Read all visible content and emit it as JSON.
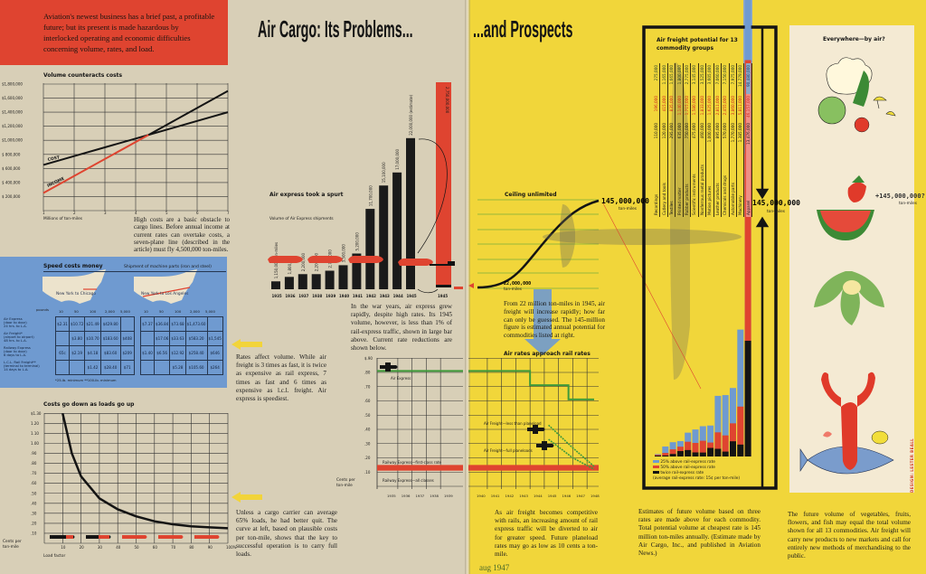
{
  "header": {
    "title_left": "Air Cargo: Its Problems...",
    "title_right": "...and Prospects"
  },
  "intro": "Aviation's newest business has a brief past, a profitable future; but its present is made hazardous by interlocked operating and economic difficulties concerning volume, rates, and load.",
  "texts": {
    "volume": "High costs are a basic obstacle to cargo lines. Before annual income at current rates can overtake costs, a seven-plane line (described in the article) must fly 4,500,000 ton-miles.",
    "rates_volume": "Rates affect volume. While air freight is 3 times as fast, it is twice as expensive as rail express, 7 times as fast and 6 times as expensive as l.c.l. freight. Air express is speediest.",
    "loads": "Unless a cargo carrier can average 65% loads, he had better quit. The curve at left, based on plausible costs per ton-mile, shows that the key to successful operation is to carry full loads.",
    "war_years": "In the war years, air express grew rapidly, despite high rates. Its 1945 volume, however, is less than 1% of rail-express traffic, shown in large bar above. Current rate reductions are shown below.",
    "from_22": "From 22 million ton-miles in 1945, air freight will increase rapidly; how far can only be guessed. The 145-million figure is estimated annual potential for commodities listed at right.",
    "competitive": "As air freight becomes competitive with rails, an increasing amount of rail express traffic will be diverted to air for greater speed. Future planeload rates may go as low as 10 cents a ton-mile.",
    "estimates": "Estimates of future volume based on three rates are made above for each commodity. Total potential volume at cheapest rate is 145 million ton-miles annually. (Estimate made by Air Cargo, Inc., and published in Aviation News.)",
    "future": "The future volume of vegetables, fruits, flowers, and fish may equal the total volume shown for all 13 commodities. Air freight will carry new products to new markets and call for entirely new methods of merchandising to the public."
  },
  "speed": {
    "title": "Speed costs money",
    "subtitle": "Shipment of machine parts (iron and steel)",
    "routes": [
      "New York to Chicago",
      "New York to Los Angeles"
    ],
    "weights_label": "pounds",
    "weights": [
      "10",
      "50",
      "100",
      "2,000",
      "5,000"
    ],
    "modes": [
      [
        "Air Express",
        "(door to door)",
        "24 hrs. to L.A."
      ],
      [
        "Air Freight*",
        "(airport to airport)",
        "48 hrs. to L.A."
      ],
      [
        "Railway Express",
        "(door to door)",
        "6 days to L.A."
      ],
      [
        "L.C.L. Rail Freight**",
        "(terminal to terminal)",
        "14 days to L.A."
      ]
    ],
    "chicago": [
      [
        "$2.31",
        "$10.72",
        "$21.49",
        "$429.80",
        ""
      ],
      [
        "",
        "$3.80",
        "$10.70",
        "$183.60",
        "$408"
      ],
      [
        "65c",
        "$2.19",
        "$4.18",
        "$83.60",
        "$209"
      ],
      [
        "",
        "",
        "$1.42",
        "$28.40",
        "$71"
      ]
    ],
    "los_angeles": [
      [
        "$7.37",
        "$36.84",
        "$73.68",
        "$1,473.60",
        ""
      ],
      [
        "",
        "$17.06",
        "$33.63",
        "$583.20",
        "$1,545"
      ],
      [
        "$1.40",
        "$6.56",
        "$12.92",
        "$258.40",
        "$646"
      ],
      [
        "",
        "",
        "$5.28",
        "$105.60",
        "$264"
      ]
    ],
    "footnote": "*25-lb. minimum    **100-lb. minimum"
  },
  "illustration": {
    "title": "Everywhere—by air?",
    "plus_label": "+145,000,000?",
    "plus_unit": "ton-miles"
  },
  "footer": {
    "date": "aug 1947",
    "credit": "DESIGN: LESTER BEALL"
  },
  "colors": {
    "red": "#df4430",
    "yellow": "#f1d63a",
    "beige": "#d8cfb7",
    "blue": "#6f9ad0",
    "green": "#3f9a3a",
    "black": "#141414"
  },
  "chart_data": [
    {
      "id": "volume",
      "type": "line",
      "title": "Volume counteracts costs",
      "xlabel": "Millions of ton-miles",
      "x": [
        1,
        2,
        3,
        4,
        5,
        6,
        7
      ],
      "xticks": [
        "1",
        "2",
        "3",
        "4",
        "5",
        "6",
        "7"
      ],
      "yticks": [
        "$1,800,000",
        "$1,600,000",
        "$1,400,000",
        "$1,200,000",
        "$1,000,000",
        "$ 800,000",
        "$ 600,000",
        "$ 400,000",
        "$ 200,000"
      ],
      "ylim": [
        0,
        1800000
      ],
      "grid": true,
      "series": [
        {
          "name": "COST",
          "values": [
            650000,
            775000,
            900000,
            1025000,
            1150000,
            1275000,
            1400000
          ],
          "color": "#141414"
        },
        {
          "name": "INCOME",
          "values": [
            250000,
            492000,
            734000,
            976000,
            1218000,
            1460000,
            1702000
          ],
          "color": "#df4430"
        }
      ]
    },
    {
      "id": "air_express",
      "type": "bar",
      "title": "Air express took a spurt",
      "subtitle": "Volume of Air Express shipments",
      "categories": [
        "1935",
        "1936",
        "1937",
        "1938",
        "1939",
        "1940",
        "1941",
        "1942",
        "1943",
        "1944",
        "1945"
      ],
      "values": [
        1150000,
        1800000,
        2200000,
        2200000,
        2700000,
        3500000,
        5200000,
        11700000,
        15100000,
        17000000,
        22000000
      ],
      "labels": [
        "1,150,000 ton-miles",
        "1,800,000",
        "2,200,000",
        "2,200,000",
        "2,700,000",
        "3,500,000",
        "5,200,000",
        "11,700,000",
        "15,100,000",
        "17,000,000",
        "22,000,000 (estimate)"
      ],
      "comparison": {
        "category": "1945",
        "value": 2750000000,
        "label": "2,750,000,000",
        "color": "#df4430"
      }
    },
    {
      "id": "loads",
      "type": "line",
      "title": "Costs go down as loads go up",
      "xlabel": "Load factor",
      "ylabel": "Cents per ton-mile",
      "xticks": [
        "10",
        "20",
        "30",
        "40",
        "50",
        "60",
        "70",
        "80",
        "90",
        "100%"
      ],
      "yticks": [
        "$1.30",
        "1.20",
        "1.10",
        "1.00",
        ".90",
        ".80",
        ".70",
        ".60",
        ".50",
        ".40",
        ".30",
        ".20",
        ".10"
      ],
      "xlim": [
        0,
        100
      ],
      "ylim": [
        0,
        1.3
      ],
      "grid": true,
      "x": [
        10,
        15,
        20,
        30,
        40,
        50,
        60,
        70,
        80,
        90,
        100
      ],
      "values": [
        1.3,
        0.9,
        0.67,
        0.45,
        0.34,
        0.27,
        0.22,
        0.19,
        0.17,
        0.16,
        0.15
      ]
    },
    {
      "id": "rates",
      "type": "line",
      "title": "Air rates approach rail rates",
      "ylabel": "Cents per ton-mile",
      "xticks": [
        "1935",
        "1936",
        "1937",
        "1938",
        "1939",
        "1940",
        "1941",
        "1942",
        "1943",
        "1944",
        "1945",
        "1946",
        "1947",
        "1948"
      ],
      "yticks": [
        "$.90",
        ".80",
        ".70",
        ".60",
        ".50",
        ".40",
        ".30",
        ".20",
        ".10"
      ],
      "ylim": [
        0,
        0.9
      ],
      "grid": true,
      "series": [
        {
          "name": "Air Express",
          "x": [
            1935,
            1943.5,
            1943.5,
            1946.2,
            1946.2,
            1948
          ],
          "values": [
            0.81,
            0.81,
            0.71,
            0.71,
            0.61,
            0.61
          ],
          "color": "#3f9a3a"
        },
        {
          "name": "Air Freight—less than planeload",
          "x": [
            1944.8,
            1946.5,
            1948
          ],
          "values": [
            0.43,
            0.27,
            0.14
          ],
          "color": "#3f9a3a"
        },
        {
          "name": "Air Freight—full planeloads",
          "x": [
            1944.8,
            1946.5,
            1948
          ],
          "values": [
            0.33,
            0.2,
            0.12
          ],
          "color": "#3f9a3a"
        },
        {
          "name": "Railway Express—first-class rate",
          "x": [
            1935,
            1948
          ],
          "values": [
            0.15,
            0.15
          ],
          "color": "#df4430"
        },
        {
          "name": "Railway Express—all classes",
          "x": [
            1935,
            1948
          ],
          "values": [
            0.11,
            0.11
          ],
          "color": "#df4430"
        }
      ]
    },
    {
      "id": "ceiling",
      "type": "line",
      "title": "Ceiling unlimited",
      "start_label": "22,000,000",
      "end_label": "145,000,000",
      "unit": "ton-miles",
      "values": [
        22000000,
        145000000
      ]
    },
    {
      "id": "commodities",
      "type": "bar",
      "title": "Air freight potential for 13 commodity groups",
      "categories": [
        "Recordings",
        "Cutlery and tools",
        "Textiles",
        "Printed matter",
        "Rubber products",
        "Scientific instruments",
        "Nonferrous metal products",
        "Motion pictures",
        "Leather products",
        "Chemicals and drugs",
        "Automobile parts",
        "Machinery",
        "Apparel"
      ],
      "series": [
        {
          "name": "twice rail-express rate",
          "color": "#141414",
          "values": [
            "110,000",
            "120,000",
            "295,000",
            "635,000",
            "750,000",
            "475,000",
            "460,000",
            "1,000,000",
            "895,000",
            "570,000",
            "1,770,000",
            "1,385,000",
            "13,476,000"
          ]
        },
        {
          "name": "50% above rail-express rate",
          "color": "#df4430",
          "values": [
            "196,000",
            "415,000",
            "835,000",
            "1,140,000",
            "1,715,000",
            "1,580,000",
            "1,833,000",
            "1,625,000",
            "2,811,000",
            "2,455,000",
            "3,860,000",
            "5,811,000",
            "46,157,000"
          ]
        },
        {
          "name": "25% above rail-express rate",
          "color": "#6f9ad0",
          "values": [
            "275,000",
            "1,165,000",
            "1,665,000",
            "1,800,000",
            "2,775,000",
            "3,145,000",
            "3,525,000",
            "3,605,000",
            "7,060,000",
            "7,150,000",
            "7,975,000",
            "14,779,000",
            "90,480,000"
          ]
        }
      ],
      "legend_note": "(average rail-express rate: 15¢ per ton-mile)",
      "total_label": "145,000,000",
      "total_unit": "ton-miles"
    }
  ]
}
